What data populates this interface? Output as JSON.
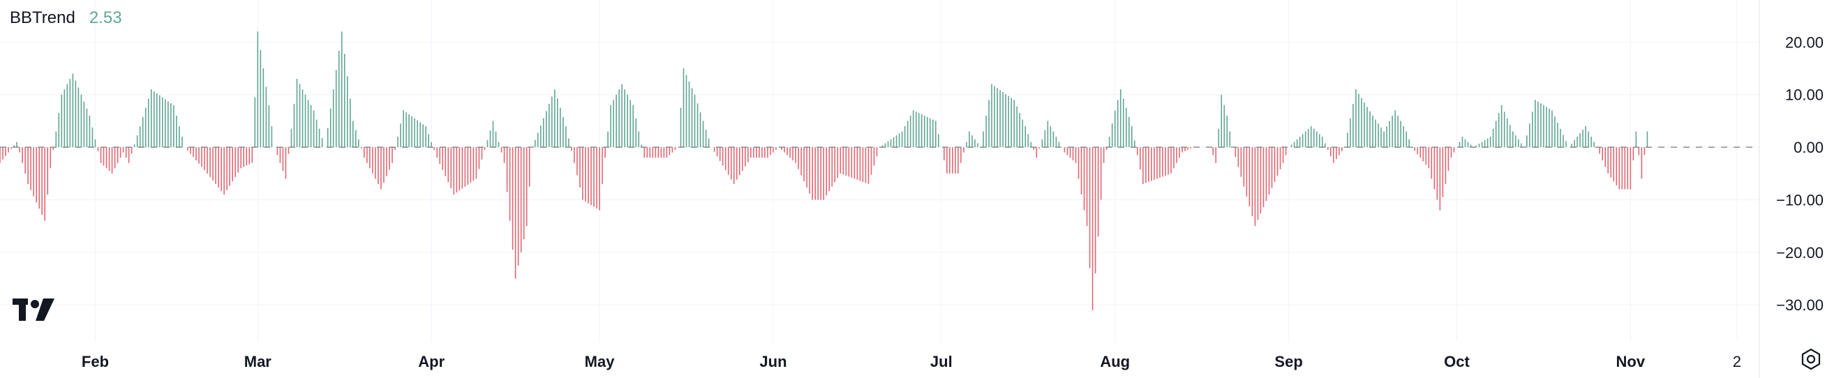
{
  "legend": {
    "name": "BBTrend",
    "value": "2.53",
    "value_color": "#5fa692"
  },
  "colors": {
    "positive": "#5fa692",
    "negative": "#e06670",
    "grid": "#f0f3fa",
    "axis_text": "#131722",
    "zero_line": "#808080"
  },
  "icons": {
    "logo": "tradingview-logo-icon",
    "settings": "gear-icon"
  },
  "chart_data": {
    "type": "bar",
    "title": "BBTrend",
    "xlabel": "",
    "ylabel": "",
    "ylim": [
      -37,
      28
    ],
    "yticks": [
      20,
      10,
      0,
      -10,
      -20,
      -30
    ],
    "ytick_labels": [
      "20.00",
      "10.00",
      "0.00",
      "−10.00",
      "−20.00",
      "−30.00"
    ],
    "xtick_labels": [
      "Feb",
      "Mar",
      "Apr",
      "May",
      "Jun",
      "Jul",
      "Aug",
      "Sep",
      "Oct",
      "Nov",
      "2"
    ],
    "xtick_positions": [
      30,
      59,
      90,
      120,
      151,
      181,
      212,
      243,
      273,
      304,
      323
    ],
    "x_unit": "day index (0 = Jan 1)",
    "zero_line": "dashed",
    "grid": true,
    "series": [
      {
        "name": "BBTrend",
        "x_start": 13,
        "x_step": 0.5,
        "keyframes": [
          [
            13,
            -3
          ],
          [
            16,
            1
          ],
          [
            18,
            -7
          ],
          [
            21,
            -14
          ],
          [
            22,
            -4
          ],
          [
            24,
            10
          ],
          [
            26,
            14
          ],
          [
            29,
            6
          ],
          [
            31,
            -3
          ],
          [
            33,
            -5
          ],
          [
            35,
            -1
          ],
          [
            36,
            -3
          ],
          [
            40,
            11
          ],
          [
            44,
            8
          ],
          [
            46,
            0
          ],
          [
            50,
            -5
          ],
          [
            53,
            -9
          ],
          [
            56,
            -4
          ],
          [
            58,
            -3
          ],
          [
            59,
            22
          ],
          [
            61,
            8
          ],
          [
            62,
            0
          ],
          [
            64,
            -6
          ],
          [
            66,
            13
          ],
          [
            69,
            7
          ],
          [
            71,
            0
          ],
          [
            74,
            22
          ],
          [
            76,
            5
          ],
          [
            78,
            -2
          ],
          [
            81,
            -8
          ],
          [
            83,
            -3
          ],
          [
            85,
            7
          ],
          [
            89,
            4
          ],
          [
            91,
            -2
          ],
          [
            94,
            -9
          ],
          [
            98,
            -6
          ],
          [
            101,
            5
          ],
          [
            103,
            -3
          ],
          [
            105,
            -25
          ],
          [
            107,
            -15
          ],
          [
            108,
            0
          ],
          [
            112,
            11
          ],
          [
            114,
            4
          ],
          [
            117,
            -10
          ],
          [
            120,
            -12
          ],
          [
            122,
            8
          ],
          [
            124,
            12
          ],
          [
            126,
            8
          ],
          [
            128,
            -2
          ],
          [
            132,
            -2
          ],
          [
            134,
            0
          ],
          [
            135,
            15
          ],
          [
            137,
            10
          ],
          [
            140,
            0
          ],
          [
            144,
            -7
          ],
          [
            147,
            -2
          ],
          [
            150,
            -2
          ],
          [
            152,
            0
          ],
          [
            155,
            -3
          ],
          [
            158,
            -10
          ],
          [
            160,
            -10
          ],
          [
            163,
            -5
          ],
          [
            168,
            -7
          ],
          [
            170,
            0
          ],
          [
            174,
            3
          ],
          [
            176,
            7
          ],
          [
            180,
            5
          ],
          [
            182,
            -5
          ],
          [
            184,
            -5
          ],
          [
            186,
            3
          ],
          [
            188,
            0
          ],
          [
            190,
            12
          ],
          [
            194,
            9
          ],
          [
            196,
            4
          ],
          [
            198,
            -2
          ],
          [
            200,
            5
          ],
          [
            203,
            -1
          ],
          [
            205,
            -3
          ],
          [
            207,
            -15
          ],
          [
            208,
            -31
          ],
          [
            210,
            -3
          ],
          [
            212,
            7
          ],
          [
            213,
            11
          ],
          [
            215,
            4
          ],
          [
            217,
            -7
          ],
          [
            222,
            -5
          ],
          [
            224,
            -1
          ],
          [
            226,
            0
          ],
          [
            229,
            0
          ],
          [
            230,
            -3
          ],
          [
            231,
            10
          ],
          [
            232,
            6
          ],
          [
            233,
            0
          ],
          [
            237,
            -15
          ],
          [
            242,
            -3
          ],
          [
            243,
            0
          ],
          [
            247,
            4
          ],
          [
            249,
            2
          ],
          [
            251,
            -3
          ],
          [
            253,
            0
          ],
          [
            255,
            11
          ],
          [
            258,
            6
          ],
          [
            260,
            3
          ],
          [
            262,
            7
          ],
          [
            264,
            3
          ],
          [
            265,
            0
          ],
          [
            268,
            -4
          ],
          [
            270,
            -12
          ],
          [
            272,
            -2
          ],
          [
            274,
            2
          ],
          [
            276,
            0
          ],
          [
            279,
            2
          ],
          [
            281,
            8
          ],
          [
            283,
            3
          ],
          [
            285,
            0
          ],
          [
            287,
            9
          ],
          [
            290,
            7
          ],
          [
            293,
            0
          ],
          [
            296,
            4
          ],
          [
            298,
            0
          ],
          [
            300,
            -5
          ],
          [
            302,
            -8
          ],
          [
            304,
            -8
          ],
          [
            305,
            3
          ],
          [
            306,
            -6
          ],
          [
            307,
            3
          ]
        ]
      }
    ]
  }
}
